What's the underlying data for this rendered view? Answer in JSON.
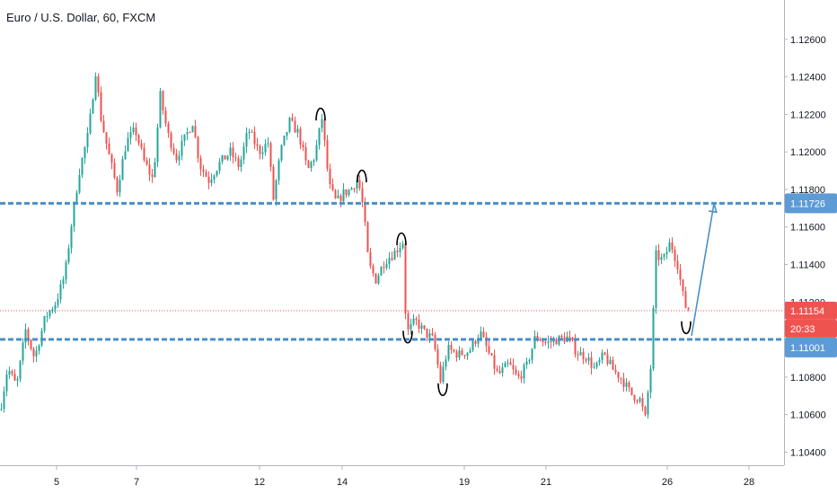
{
  "chart_data": {
    "type": "candlestick",
    "title": "Euro / U.S. Dollar, 60, FXCM",
    "y_ticks": [
      "1.12600",
      "1.12400",
      "1.12200",
      "1.12000",
      "1.11800",
      "1.11600",
      "1.11400",
      "1.11200",
      "1.10800",
      "1.10600",
      "1.10400"
    ],
    "x_ticks": [
      "5",
      "7",
      "12",
      "14",
      "19",
      "21",
      "26",
      "28"
    ],
    "ylim": [
      1.1033,
      1.1281
    ],
    "price_labels": {
      "resistance": "1.11726",
      "current": "1.11154",
      "countdown": "20:33",
      "support": "1.11001"
    },
    "levels": {
      "resistance": 1.11726,
      "current": 1.11154,
      "support": 1.11001
    },
    "price_path": [
      {
        "x": 0,
        "y": 1.1063
      },
      {
        "x": 8,
        "y": 1.1085
      },
      {
        "x": 18,
        "y": 1.1075
      },
      {
        "x": 28,
        "y": 1.1105
      },
      {
        "x": 38,
        "y": 1.109
      },
      {
        "x": 50,
        "y": 1.1112
      },
      {
        "x": 62,
        "y": 1.112
      },
      {
        "x": 72,
        "y": 1.1135
      },
      {
        "x": 80,
        "y": 1.1165
      },
      {
        "x": 88,
        "y": 1.119
      },
      {
        "x": 98,
        "y": 1.121
      },
      {
        "x": 106,
        "y": 1.1243
      },
      {
        "x": 112,
        "y": 1.1218
      },
      {
        "x": 120,
        "y": 1.12
      },
      {
        "x": 130,
        "y": 1.118
      },
      {
        "x": 140,
        "y": 1.1205
      },
      {
        "x": 150,
        "y": 1.1212
      },
      {
        "x": 160,
        "y": 1.1195
      },
      {
        "x": 170,
        "y": 1.1185
      },
      {
        "x": 178,
        "y": 1.123
      },
      {
        "x": 186,
        "y": 1.121
      },
      {
        "x": 196,
        "y": 1.1197
      },
      {
        "x": 206,
        "y": 1.1208
      },
      {
        "x": 214,
        "y": 1.1216
      },
      {
        "x": 222,
        "y": 1.1193
      },
      {
        "x": 232,
        "y": 1.1185
      },
      {
        "x": 244,
        "y": 1.1194
      },
      {
        "x": 256,
        "y": 1.12
      },
      {
        "x": 266,
        "y": 1.1192
      },
      {
        "x": 276,
        "y": 1.1212
      },
      {
        "x": 288,
        "y": 1.12
      },
      {
        "x": 298,
        "y": 1.1205
      },
      {
        "x": 304,
        "y": 1.1175
      },
      {
        "x": 312,
        "y": 1.12
      },
      {
        "x": 322,
        "y": 1.1216
      },
      {
        "x": 332,
        "y": 1.121
      },
      {
        "x": 342,
        "y": 1.119
      },
      {
        "x": 350,
        "y": 1.1198
      },
      {
        "x": 358,
        "y": 1.1218
      },
      {
        "x": 366,
        "y": 1.1182
      },
      {
        "x": 374,
        "y": 1.1173
      },
      {
        "x": 382,
        "y": 1.1178
      },
      {
        "x": 390,
        "y": 1.118
      },
      {
        "x": 398,
        "y": 1.1186
      },
      {
        "x": 404,
        "y": 1.117
      },
      {
        "x": 410,
        "y": 1.114
      },
      {
        "x": 418,
        "y": 1.1132
      },
      {
        "x": 428,
        "y": 1.1142
      },
      {
        "x": 438,
        "y": 1.1146
      },
      {
        "x": 448,
        "y": 1.1152
      },
      {
        "x": 452,
        "y": 1.1103
      },
      {
        "x": 462,
        "y": 1.111
      },
      {
        "x": 472,
        "y": 1.1104
      },
      {
        "x": 482,
        "y": 1.11
      },
      {
        "x": 490,
        "y": 1.1078
      },
      {
        "x": 498,
        "y": 1.1095
      },
      {
        "x": 510,
        "y": 1.1092
      },
      {
        "x": 522,
        "y": 1.1094
      },
      {
        "x": 534,
        "y": 1.1104
      },
      {
        "x": 546,
        "y": 1.109
      },
      {
        "x": 554,
        "y": 1.1081
      },
      {
        "x": 566,
        "y": 1.1087
      },
      {
        "x": 576,
        "y": 1.1079
      },
      {
        "x": 586,
        "y": 1.1086
      },
      {
        "x": 596,
        "y": 1.1102
      },
      {
        "x": 608,
        "y": 1.1098
      },
      {
        "x": 620,
        "y": 1.11
      },
      {
        "x": 632,
        "y": 1.1101
      },
      {
        "x": 642,
        "y": 1.1093
      },
      {
        "x": 652,
        "y": 1.1091
      },
      {
        "x": 662,
        "y": 1.1084
      },
      {
        "x": 672,
        "y": 1.1092
      },
      {
        "x": 682,
        "y": 1.1084
      },
      {
        "x": 692,
        "y": 1.1079
      },
      {
        "x": 702,
        "y": 1.1071
      },
      {
        "x": 712,
        "y": 1.1068
      },
      {
        "x": 718,
        "y": 1.1058
      },
      {
        "x": 724,
        "y": 1.1085
      },
      {
        "x": 730,
        "y": 1.1145
      },
      {
        "x": 738,
        "y": 1.1142
      },
      {
        "x": 746,
        "y": 1.1152
      },
      {
        "x": 754,
        "y": 1.114
      },
      {
        "x": 762,
        "y": 1.1118
      },
      {
        "x": 768,
        "y": 1.1116
      }
    ],
    "projection": [
      {
        "x": 770,
        "y": 1.1102
      },
      {
        "x": 795,
        "y": 1.11725
      }
    ],
    "grid": false,
    "legend": "none",
    "colors": {
      "up": "#26a69a",
      "down": "#ef5350",
      "level_line": "#4a90c8",
      "current_line": "#ef5350",
      "axis_text": "#131722",
      "badge_blue": "#5c9bd6",
      "badge_red": "#ef5350"
    }
  }
}
